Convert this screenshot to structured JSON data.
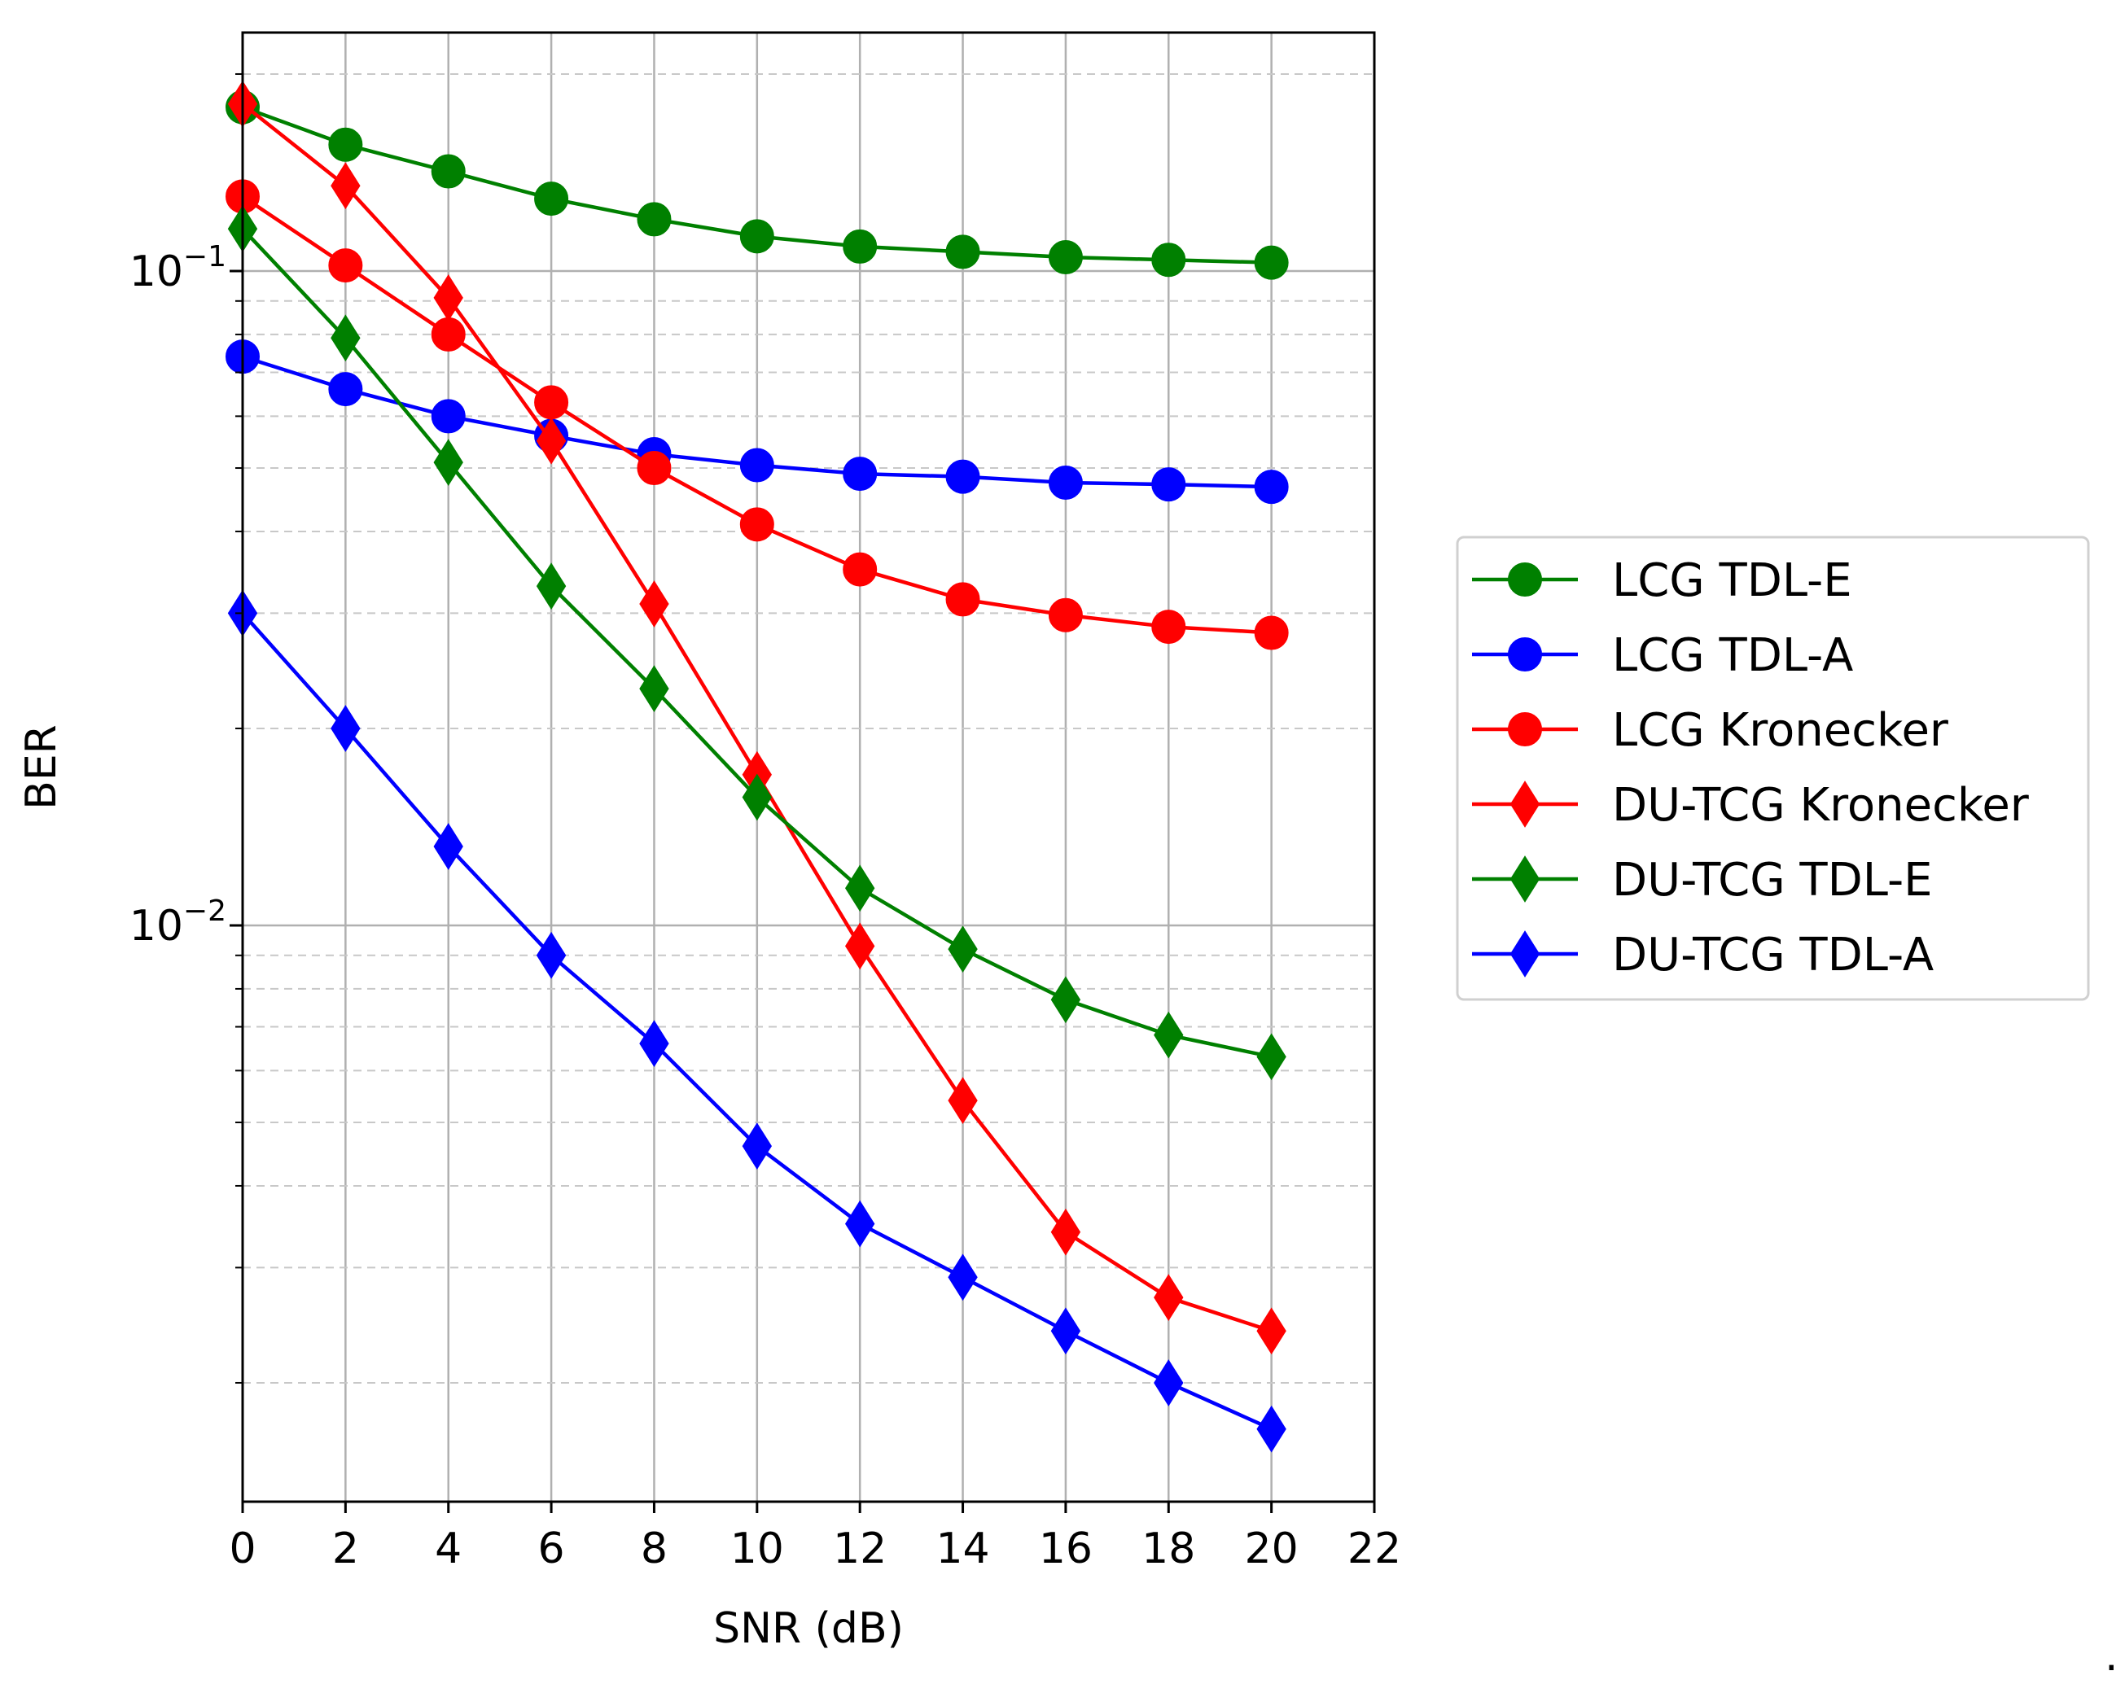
{
  "chart_data": {
    "type": "line",
    "title": "",
    "xlabel": "SNR (dB)",
    "ylabel": "BER",
    "xscale": "linear",
    "yscale": "log",
    "xlim": [
      0,
      22
    ],
    "ylim": [
      0.00125,
      0.22
    ],
    "x_ticks": [
      0,
      2,
      4,
      6,
      8,
      10,
      12,
      14,
      16,
      18,
      20,
      22
    ],
    "x_tick_labels": [
      "0",
      "2",
      "4",
      "6",
      "8",
      "10",
      "12",
      "14",
      "16",
      "18",
      "20",
      "22"
    ],
    "y_major_ticks": [
      {
        "value": 0.1,
        "base": "10",
        "exp": "−1"
      },
      {
        "value": 0.01,
        "base": "10",
        "exp": "−2"
      }
    ],
    "grid": "major solid, minor dashed",
    "legend_position": "outside right",
    "trailing_mark": ".",
    "x": [
      0,
      2,
      4,
      6,
      8,
      10,
      12,
      14,
      16,
      18,
      20
    ],
    "series": [
      {
        "name": "LCG TDL-E",
        "color": "#008000",
        "marker": "circle",
        "values": [
          0.178,
          0.156,
          0.142,
          0.129,
          0.12,
          0.113,
          0.109,
          0.107,
          0.105,
          0.104,
          0.103
        ]
      },
      {
        "name": "LCG TDL-A",
        "color": "#0000ff",
        "marker": "circle",
        "values": [
          0.074,
          0.066,
          0.06,
          0.056,
          0.0525,
          0.0505,
          0.049,
          0.0485,
          0.0475,
          0.0472,
          0.0468
        ]
      },
      {
        "name": "LCG Kronecker",
        "color": "#ff0000",
        "marker": "circle",
        "values": [
          0.13,
          0.102,
          0.08,
          0.063,
          0.05,
          0.041,
          0.035,
          0.0315,
          0.0298,
          0.0286,
          0.028
        ]
      },
      {
        "name": "DU-TCG Kronecker",
        "color": "#ff0000",
        "marker": "diamond",
        "values": [
          0.18,
          0.135,
          0.091,
          0.055,
          0.031,
          0.017,
          0.0093,
          0.0054,
          0.0034,
          0.0027,
          0.0024
        ]
      },
      {
        "name": "DU-TCG TDL-E",
        "color": "#008000",
        "marker": "diamond",
        "values": [
          0.116,
          0.079,
          0.051,
          0.033,
          0.023,
          0.0157,
          0.0114,
          0.0092,
          0.0077,
          0.0068,
          0.0063
        ]
      },
      {
        "name": "DU-TCG TDL-A",
        "color": "#0000ff",
        "marker": "diamond",
        "values": [
          0.03,
          0.02,
          0.0132,
          0.009,
          0.0066,
          0.0046,
          0.0035,
          0.0029,
          0.0024,
          0.002,
          0.0017
        ]
      }
    ]
  }
}
